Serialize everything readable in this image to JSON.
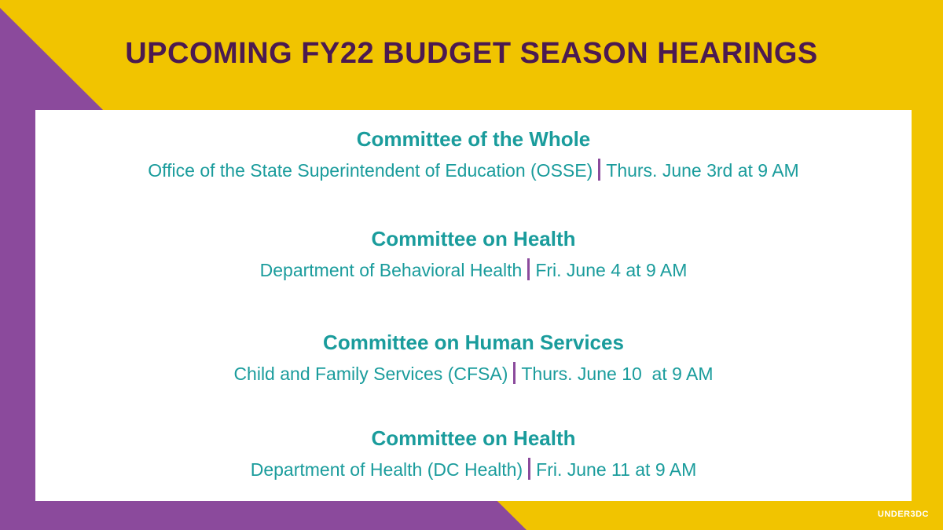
{
  "header": {
    "title": "UPCOMING FY22 BUDGET SEASON HEARINGS"
  },
  "hearings": [
    {
      "committee": "Committee of the Whole",
      "agency": "Office of the State Superintendent of Education (OSSE)",
      "date": "Thurs. June 3rd at 9 AM"
    },
    {
      "committee": "Committee on Health",
      "agency": "Department of Behavioral Health",
      "date": "Fri. June 4 at 9 AM"
    },
    {
      "committee": "Committee on Human Services",
      "agency": "Child and Family Services (CFSA)",
      "date": "Thurs. June 10  at 9 AM"
    },
    {
      "committee": "Committee on Health",
      "agency": "Department of Health (DC Health)",
      "date": "Fri. June 11 at 9 AM"
    }
  ],
  "logo": "UNDER3DC"
}
